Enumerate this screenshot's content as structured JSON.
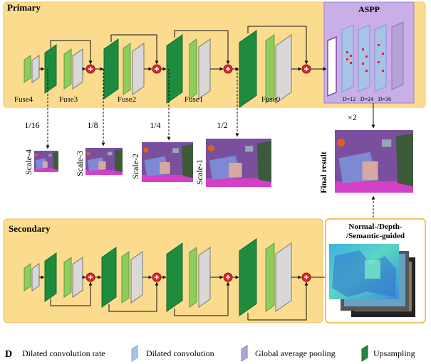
{
  "colors": {
    "panel_fill": "#fbdc8f",
    "panel_stroke": "#f2c55c",
    "aspp_fill": "#c9aee8",
    "upsampling": "#1f8b3f",
    "conv_light_green": "#8fcc5e",
    "conv_grey": "#d8d8d8",
    "dilated": "#a9c3e8",
    "global_pool": "#b5a3d6",
    "fuse_op": "#e3242b",
    "seg_purple": "#7a4f9e",
    "seg_magenta": "#d43fc8",
    "seg_blue": "#7e8fd8"
  },
  "primary": {
    "title": "Primary",
    "fuse_labels": [
      "Fuse4",
      "Fuse3",
      "Fuse2",
      "Fuse1",
      "Fuse0"
    ]
  },
  "aspp": {
    "title": "ASPP",
    "rates": [
      "D=12",
      "D=24",
      "D=36"
    ]
  },
  "upscale_label": "×2",
  "final_result_label": "Final result",
  "scales": [
    {
      "ratio": "1/16",
      "name": "Scale-4"
    },
    {
      "ratio": "1/8",
      "name": "Scale-3"
    },
    {
      "ratio": "1/4",
      "name": "Scale-2"
    },
    {
      "ratio": "1/2",
      "name": "Scale-1"
    }
  ],
  "secondary": {
    "title": "Secondary"
  },
  "guidance": {
    "line1": "Normal-/Depth-",
    "line2": "/Semantic-guided"
  },
  "legend": {
    "d_symbol": "D",
    "d_text": "Dilated convolution rate",
    "items": [
      "Dilated convolution",
      "Global average pooling",
      "Upsampling"
    ]
  }
}
